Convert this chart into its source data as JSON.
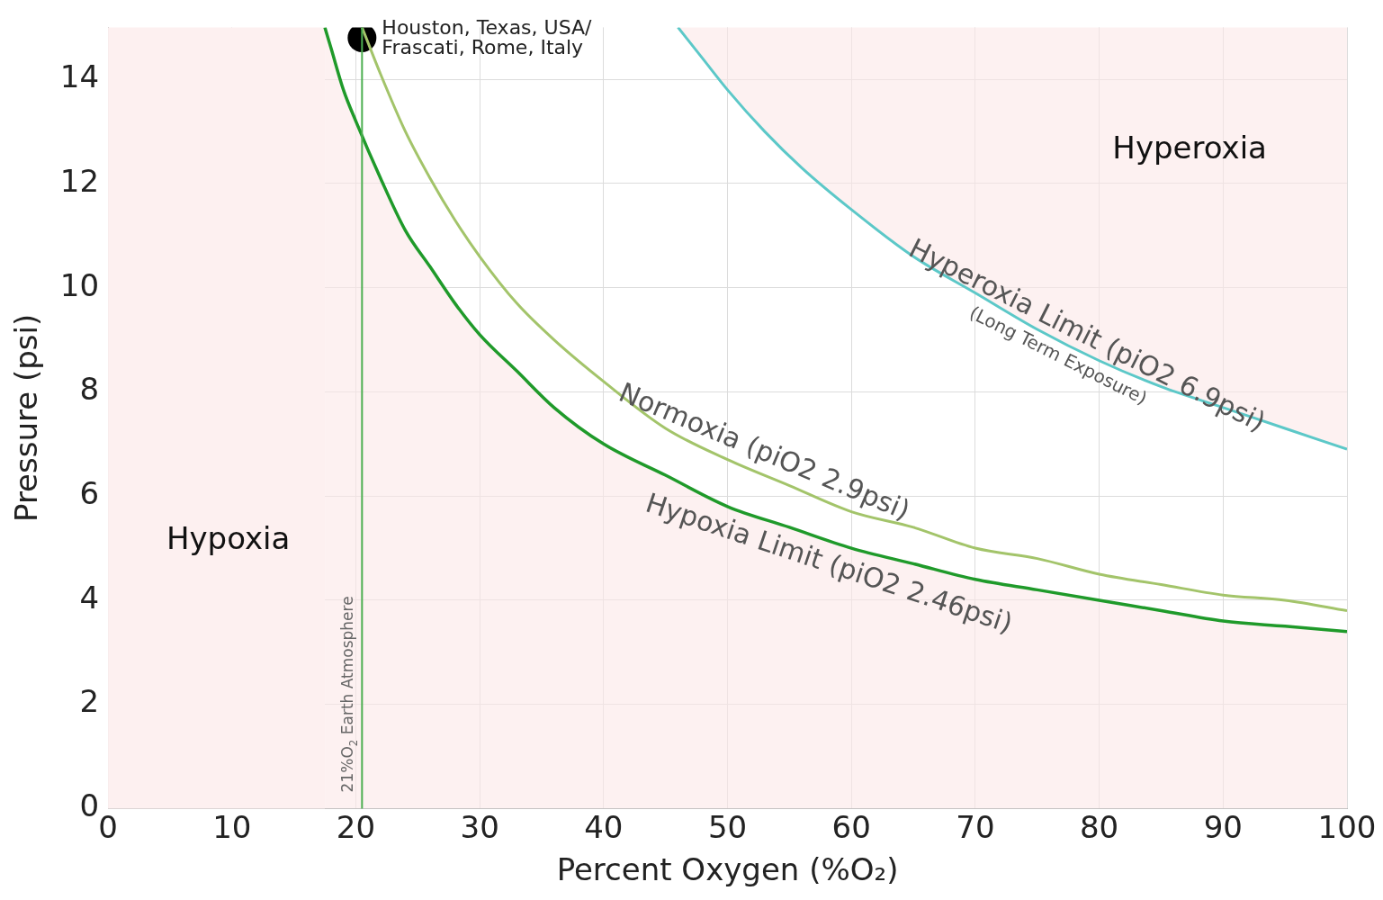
{
  "chart_data": {
    "type": "line",
    "xlabel": "Percent Oxygen (%O₂)",
    "ylabel": "Pressure (psi)",
    "xlim": [
      0,
      100
    ],
    "xticks": [
      0,
      10,
      20,
      30,
      40,
      50,
      60,
      70,
      80,
      90,
      100
    ],
    "ylim": [
      0,
      15
    ],
    "yticks": [
      0,
      2,
      4,
      6,
      8,
      10,
      12,
      14
    ],
    "grid": true,
    "legend": false,
    "series": [
      {
        "name": "Hyperoxia Limit (piO2 6.9psi)",
        "type": "line",
        "color": "#5cc8c8",
        "x": [
          46,
          48,
          50,
          53,
          56,
          60,
          65,
          70,
          75,
          80,
          85,
          90,
          95,
          100
        ],
        "values": [
          15.0,
          14.4,
          13.8,
          13.0,
          12.3,
          11.5,
          10.6,
          9.9,
          9.2,
          8.6,
          8.1,
          7.7,
          7.3,
          6.9
        ]
      },
      {
        "name": "Normoxia (piO2 2.9psi)",
        "color": "#a3c46a",
        "x": [
          20.5,
          22,
          24,
          26,
          28,
          30,
          33,
          36,
          40,
          45,
          50,
          55,
          60,
          65,
          70,
          75,
          80,
          85,
          90,
          95,
          100
        ],
        "values": [
          15.0,
          14.1,
          13.0,
          12.1,
          11.3,
          10.6,
          9.7,
          9.0,
          8.2,
          7.3,
          6.7,
          6.2,
          5.7,
          5.4,
          5.0,
          4.8,
          4.5,
          4.3,
          4.1,
          4.0,
          3.8
        ]
      },
      {
        "name": "Hypoxia Limit (piO2 2.46psi)",
        "type": "area",
        "color": "#1f9a2a",
        "x": [
          17.5,
          18,
          19,
          20,
          22,
          24,
          26,
          28,
          30,
          33,
          36,
          40,
          45,
          50,
          55,
          60,
          65,
          70,
          75,
          80,
          85,
          90,
          95,
          100
        ],
        "values": [
          15.0,
          14.6,
          13.8,
          13.2,
          12.1,
          11.1,
          10.4,
          9.7,
          9.1,
          8.4,
          7.7,
          7.0,
          6.4,
          5.8,
          5.4,
          5.0,
          4.7,
          4.4,
          4.2,
          4.0,
          3.8,
          3.6,
          3.5,
          3.4
        ]
      },
      {
        "name": "Houston, Texas, USA/ Frascati, Rome, Italy",
        "type": "scatter",
        "marker": "circle",
        "color": "#000000",
        "x": [
          20.5
        ],
        "values": [
          14.8
        ]
      }
    ],
    "bands": [
      {
        "axis": "x",
        "from": 0,
        "to": 17.5,
        "color": "#fdf0f0"
      }
    ],
    "ref_lines": [
      {
        "axis": "x",
        "value": 20.5,
        "label": "21%O$_{2}$ Earth Atmosphere",
        "color": "#4caf50"
      }
    ],
    "annotations": [
      "(Long Term Exposure)",
      "Hyperoxia",
      "Hypoxia"
    ]
  }
}
